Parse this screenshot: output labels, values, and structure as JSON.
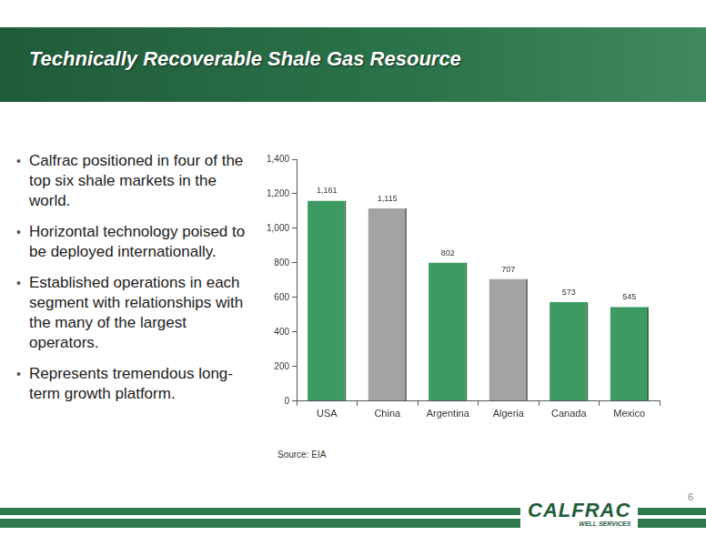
{
  "header": {
    "title": "Technically Recoverable Shale Gas Resource"
  },
  "bullets": [
    "Calfrac positioned in four of the top six shale markets in the world.",
    "Horizontal technology poised to be deployed internationally.",
    "Established operations in each segment with relationships with the many of the largest operators.",
    "Represents tremendous long-term growth platform."
  ],
  "source": "Source: EIA",
  "logo": {
    "name": "CALFRAC",
    "tagline": "WELL SERVICES"
  },
  "page": "6",
  "chart_data": {
    "type": "bar",
    "categories": [
      "USA",
      "China",
      "Argentina",
      "Algeria",
      "Canada",
      "Mexico"
    ],
    "values": [
      1161,
      1115,
      802,
      707,
      573,
      545
    ],
    "value_labels": [
      "1,161",
      "1,115",
      "802",
      "707",
      "573",
      "545"
    ],
    "colors": [
      "#3d9a62",
      "#a3a3a3",
      "#3d9a62",
      "#a3a3a3",
      "#3d9a62",
      "#3d9a62"
    ],
    "ylim": [
      0,
      1400
    ],
    "yticks": [
      0,
      200,
      400,
      600,
      800,
      {
        "value": 1000,
        "label": "1,000"
      },
      {
        "value": 1200,
        "label": "1,200"
      },
      {
        "value": 1400,
        "label": "1,400"
      }
    ],
    "grid": false,
    "data_labels": true
  }
}
